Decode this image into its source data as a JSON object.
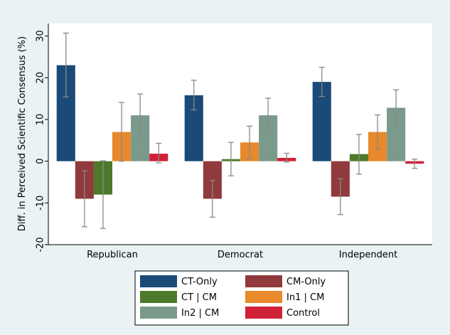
{
  "chart_data": {
    "type": "bar",
    "ylabel": "Diff. in Perceived Scientific Consensus (%)",
    "ylim": [
      -20,
      33
    ],
    "yticks": [
      -20,
      -10,
      0,
      10,
      20,
      30
    ],
    "grid": false,
    "legend_placement": "bottom",
    "categories": [
      "Republican",
      "Democrat",
      "Independent"
    ],
    "series": [
      {
        "name": "CT-Only",
        "color": "#1a4a78",
        "values": [
          23,
          15.8,
          19
        ],
        "err_low": [
          15.4,
          12.3,
          15.5
        ],
        "err_high": [
          30.7,
          19.4,
          22.5
        ]
      },
      {
        "name": "CM-Only",
        "color": "#903a3d",
        "values": [
          -9,
          -9,
          -8.5
        ],
        "err_low": [
          -15.7,
          -13.4,
          -12.8
        ],
        "err_high": [
          -2.3,
          -4.6,
          -4.2
        ]
      },
      {
        "name": "CT | CM",
        "color": "#4c7a2a",
        "values": [
          -8,
          0.5,
          1.7
        ],
        "err_low": [
          -16.1,
          -3.5,
          -3.1
        ],
        "err_high": [
          0.1,
          4.5,
          6.4
        ]
      },
      {
        "name": "In1 | CM",
        "color": "#e8892b",
        "values": [
          7,
          4.5,
          7
        ],
        "err_low": [
          0,
          0.6,
          2.9
        ],
        "err_high": [
          14.1,
          8.4,
          11.1
        ]
      },
      {
        "name": "In2 | CM",
        "color": "#7a9a8c",
        "values": [
          11,
          11,
          12.8
        ],
        "err_low": [
          5.9,
          7.1,
          8.6
        ],
        "err_high": [
          16.1,
          15.1,
          17.1
        ]
      },
      {
        "name": "Control",
        "color": "#cf2138",
        "values": [
          1.8,
          0.8,
          -0.6
        ],
        "err_low": [
          -0.4,
          -0.2,
          -1.7
        ],
        "err_high": [
          4.3,
          1.9,
          0.5
        ]
      }
    ]
  }
}
